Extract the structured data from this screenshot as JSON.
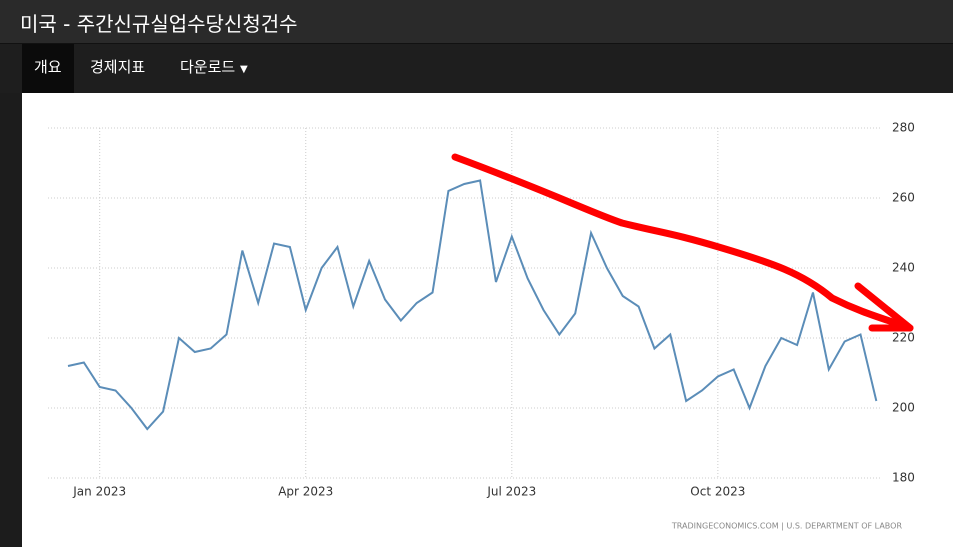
{
  "header": {
    "title": "미국 - 주간신규실업수당신청건수"
  },
  "nav": [
    "개요",
    "경제지표",
    "다운로드"
  ],
  "chart_data": {
    "type": "line",
    "categories": [
      null,
      null,
      "Jan 2023",
      null,
      null,
      null,
      null,
      null,
      null,
      null,
      null,
      null,
      null,
      null,
      null,
      "Apr 2023",
      null,
      null,
      null,
      null,
      null,
      null,
      null,
      null,
      null,
      null,
      null,
      null,
      "Jul 2023",
      null,
      null,
      null,
      null,
      null,
      null,
      null,
      null,
      null,
      null,
      null,
      null,
      "Oct 2023",
      null,
      null,
      null,
      null,
      null,
      null,
      null,
      null,
      null,
      null
    ],
    "values": [
      212,
      213,
      206,
      205,
      200,
      194,
      199,
      220,
      216,
      217,
      221,
      245,
      230,
      247,
      246,
      228,
      240,
      246,
      229,
      242,
      231,
      225,
      230,
      233,
      262,
      264,
      265,
      236,
      249,
      237,
      228,
      221,
      227,
      250,
      240,
      232,
      229,
      217,
      221,
      202,
      205,
      209,
      211,
      200,
      212,
      220,
      218,
      233,
      211,
      219,
      221,
      202
    ],
    "color": "#5b8db8",
    "ylim": [
      180,
      280
    ],
    "yticks": [
      180,
      200,
      220,
      240,
      260,
      280
    ],
    "grid": true,
    "source": "TRADINGECONOMICS.COM  |  U.S. DEPARTMENT OF LABOR"
  }
}
